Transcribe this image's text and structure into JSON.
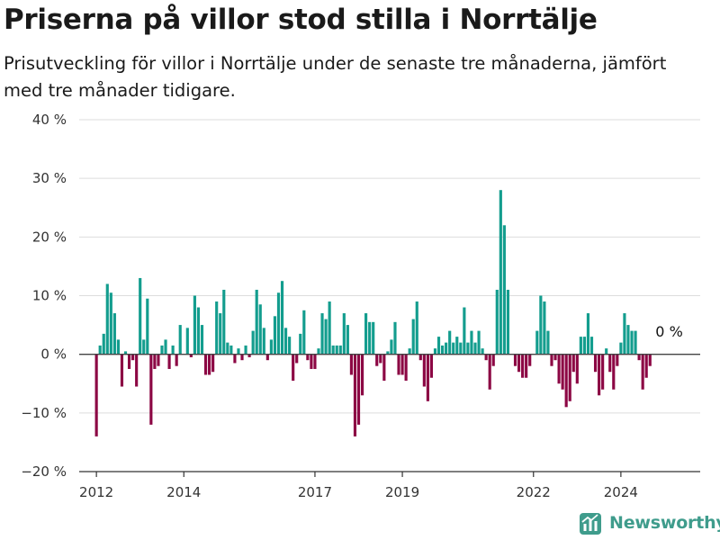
{
  "title": "Priserna på villor stod stilla i Norrtälje",
  "subtitle": "Prisutveckling för villor i Norrtälje under de senaste tre månaderna, jämfört med tre månader tidigare.",
  "brand": {
    "name": "Newsworthy",
    "icon": "newsworthy-logo-icon"
  },
  "colors": {
    "positive": "#139d8e",
    "negative": "#8c0744",
    "axis": "#333333",
    "grid": "#dddddd"
  },
  "chart_data": {
    "type": "bar",
    "title": "Priserna på villor stod stilla i Norrtälje",
    "subtitle": "Prisutveckling för villor i Norrtälje under de senaste tre månaderna, jämfört med tre månader tidigare.",
    "xlabel": "",
    "ylabel": "",
    "ylim": [
      -20,
      40
    ],
    "yticks": [
      -20,
      -10,
      0,
      10,
      20,
      30,
      40
    ],
    "ytick_labels": [
      "−20 %",
      "−10 %",
      "0 %",
      "10 %",
      "20 %",
      "30 %",
      "40 %"
    ],
    "xticks": [
      2012,
      2014,
      2017,
      2019,
      2022,
      2024
    ],
    "xtick_labels": [
      "2012",
      "2014",
      "2017",
      "2019",
      "2022",
      "2024"
    ],
    "grid": true,
    "start": "2012-01",
    "frequency": "monthly",
    "unit": "%",
    "last_value_label": "0 %",
    "values": [
      -14,
      1.5,
      3.5,
      12,
      10.5,
      7,
      2.5,
      -5.5,
      0.5,
      -2.5,
      -1,
      -5.5,
      13,
      2.5,
      9.5,
      -12,
      -2.5,
      -2,
      1.5,
      2.5,
      -2.5,
      1.5,
      -2,
      5,
      0,
      4.5,
      -0.5,
      10,
      8,
      5,
      -3.5,
      -3.5,
      -3,
      9,
      7,
      11,
      2,
      1.5,
      -1.5,
      1,
      -1,
      1.5,
      -0.5,
      4,
      11,
      8.5,
      4.5,
      -1,
      2.5,
      6.5,
      10.5,
      12.5,
      4.5,
      3,
      -4.5,
      -1.5,
      3.5,
      7.5,
      -1,
      -2.5,
      -2.5,
      1,
      7,
      6,
      9,
      1.5,
      1.5,
      1.5,
      7,
      5,
      -3.5,
      -14,
      -12,
      -7,
      7,
      5.5,
      5.5,
      -2,
      -1.5,
      -4.5,
      0.5,
      2.5,
      5.5,
      -3.5,
      -3.5,
      -4.5,
      1,
      6,
      9,
      -1,
      -5.5,
      -8,
      -4,
      1,
      3,
      1.5,
      2,
      4,
      2,
      3,
      2,
      8,
      2,
      4,
      2,
      4,
      1,
      -1,
      -6,
      -2,
      11,
      28,
      22,
      11,
      0,
      -2,
      -3,
      -4,
      -4,
      -2,
      0,
      4,
      10,
      9,
      4,
      -2,
      -1,
      -5,
      -6,
      -9,
      -8,
      -3,
      -5,
      3,
      3,
      7,
      3,
      -3,
      -7,
      -6,
      1,
      -3,
      -6,
      -2,
      2,
      7,
      5,
      4,
      4,
      -1,
      -6,
      -4,
      -2,
      0
    ]
  }
}
